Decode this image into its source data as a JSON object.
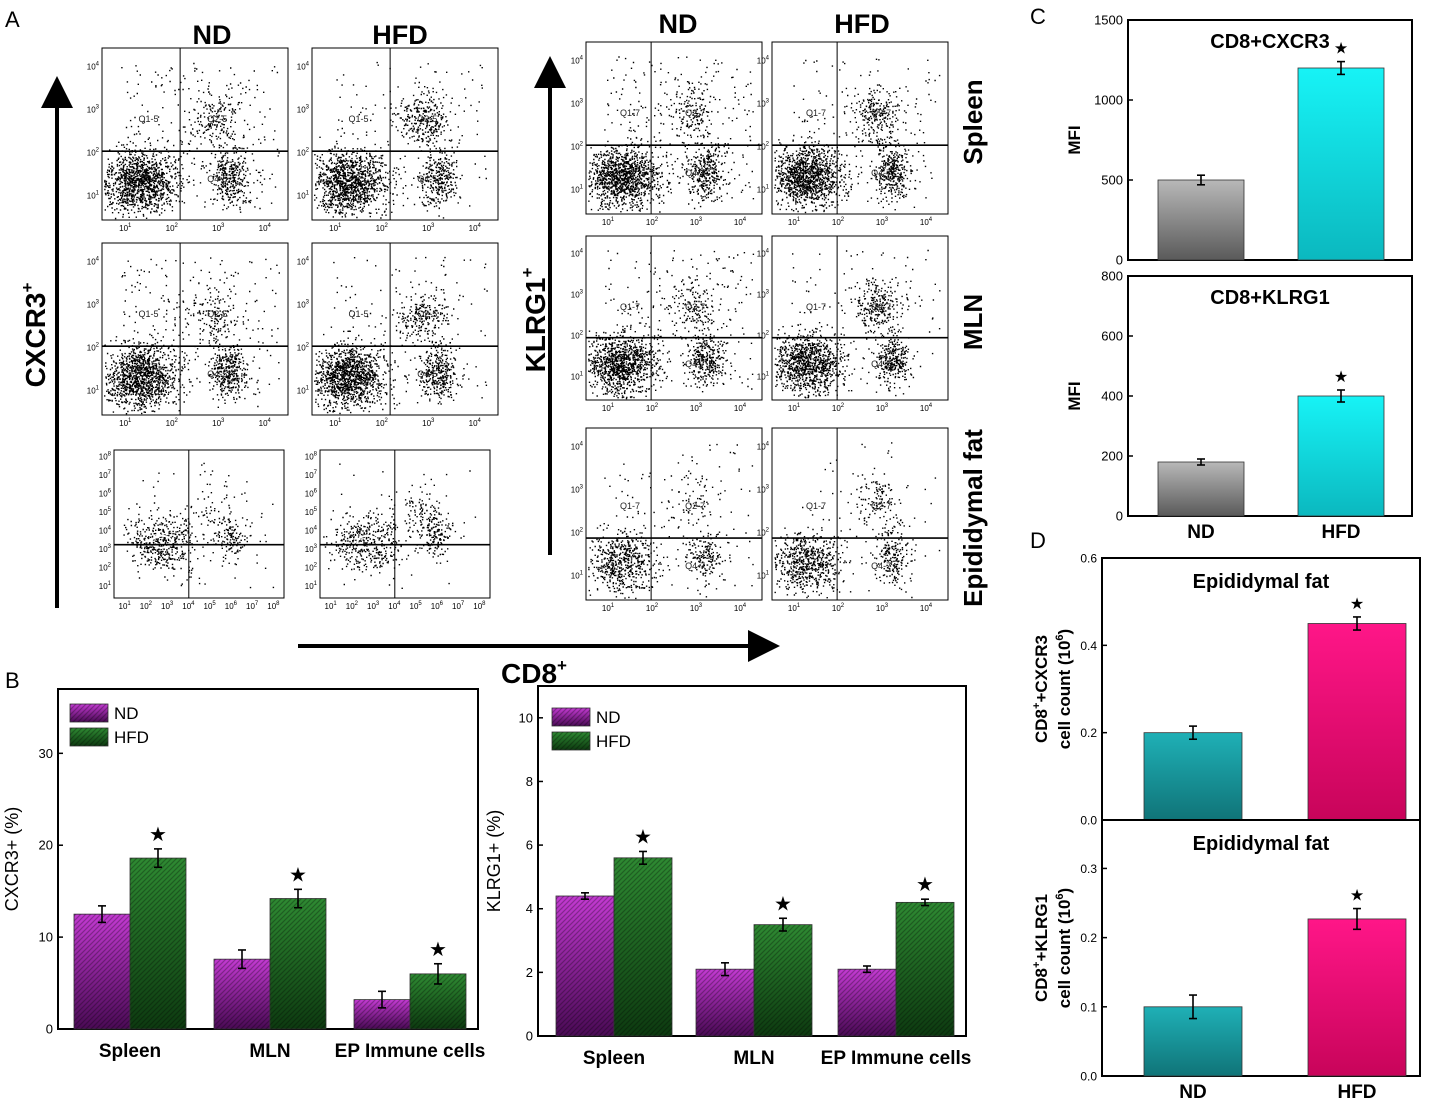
{
  "panel_labels": {
    "a": "A",
    "b": "B",
    "c": "C",
    "d": "D"
  },
  "panel_a": {
    "left_groups": [
      "ND",
      "HFD"
    ],
    "right_groups": [
      "ND",
      "HFD"
    ],
    "left_y_label": "CXCR3",
    "right_y_label": "KLRG1",
    "sup": "+",
    "x_label": "CD8",
    "row_labels": [
      "Spleen",
      "MLN",
      "Epididymal fat"
    ],
    "gate_left": [
      "Q1-5",
      "Q2-5",
      "Q4-5"
    ],
    "gate_right": [
      "Q1-7",
      "Q2-7",
      "Q4-7"
    ],
    "tick_base": "10",
    "decades_lr": [
      "1",
      "2",
      "3",
      "4"
    ],
    "decades_fat": [
      "1",
      "2",
      "3",
      "4",
      "5",
      "6",
      "7",
      "8"
    ]
  },
  "chart_data": [
    {
      "id": "b1",
      "type": "bar",
      "categories": [
        "Spleen",
        "MLN",
        "EP Immune cells"
      ],
      "series": [
        {
          "name": "ND",
          "values": [
            12.5,
            7.6,
            3.2
          ],
          "errors": [
            0.9,
            1.0,
            0.9
          ],
          "color": "#b020c0"
        },
        {
          "name": "HFD",
          "values": [
            18.6,
            14.2,
            6.0
          ],
          "errors": [
            1.0,
            1.0,
            1.1
          ],
          "color": "#1f6b23"
        }
      ],
      "ylabel": "CXCR3+ (%)",
      "ylim": [
        0,
        37
      ],
      "yticks": [
        "0",
        "10",
        "20",
        "30"
      ],
      "significance": [
        "★",
        "★",
        "★"
      ]
    },
    {
      "id": "b2",
      "type": "bar",
      "categories": [
        "Spleen",
        "MLN",
        "EP Immune cells"
      ],
      "series": [
        {
          "name": "ND",
          "values": [
            4.4,
            2.1,
            2.1
          ],
          "errors": [
            0.1,
            0.2,
            0.1
          ],
          "color": "#b020c0"
        },
        {
          "name": "HFD",
          "values": [
            5.6,
            3.5,
            4.2
          ],
          "errors": [
            0.2,
            0.2,
            0.1
          ],
          "color": "#1f6b23"
        }
      ],
      "ylabel": "KLRG1+ (%)",
      "ylim": [
        0,
        11
      ],
      "yticks": [
        "0",
        "2",
        "4",
        "6",
        "8",
        "10"
      ],
      "significance": [
        "★",
        "★",
        "★"
      ]
    },
    {
      "id": "c1",
      "type": "bar",
      "title": "CD8+CXCR3",
      "categories": [
        "ND",
        "HFD"
      ],
      "values": [
        500,
        1200
      ],
      "errors": [
        30,
        40
      ],
      "colors": [
        "#9a9a9a",
        "#10e8ec"
      ],
      "ylabel": "MFI",
      "ylim": [
        0,
        1500
      ],
      "yticks": [
        "0",
        "500",
        "1000",
        "1500"
      ],
      "significance": [
        "",
        "★"
      ]
    },
    {
      "id": "c2",
      "type": "bar",
      "title": "CD8+KLRG1",
      "categories": [
        "ND",
        "HFD"
      ],
      "values": [
        180,
        400
      ],
      "errors": [
        10,
        20
      ],
      "colors": [
        "#9a9a9a",
        "#10e8ec"
      ],
      "ylabel": "MFI",
      "ylim": [
        0,
        800
      ],
      "yticks": [
        "0",
        "200",
        "400",
        "600",
        "800"
      ],
      "significance": [
        "",
        "★"
      ]
    },
    {
      "id": "d1",
      "type": "bar",
      "title": "Epididymal fat",
      "categories": [
        "ND",
        "HFD"
      ],
      "values": [
        0.2,
        0.45
      ],
      "errors": [
        0.015,
        0.015
      ],
      "colors": [
        "#1e9aa0",
        "#f00a76"
      ],
      "ylabel": [
        "CD8",
        "+",
        "+CXCR3",
        "cell count (10",
        "6",
        ")"
      ],
      "ylim": [
        0,
        0.6
      ],
      "yticks": [
        "0.0",
        "0.2",
        "0.4",
        "0.6"
      ],
      "significance": [
        "",
        "★"
      ]
    },
    {
      "id": "d2",
      "type": "bar",
      "title": "Epididymal fat",
      "categories": [
        "ND",
        "HFD"
      ],
      "values": [
        0.1,
        0.227
      ],
      "errors": [
        0.017,
        0.015
      ],
      "colors": [
        "#1e9aa0",
        "#f00a76"
      ],
      "ylabel": [
        "CD8",
        "+",
        "+KLRG1",
        "cell count (10",
        "6",
        ")"
      ],
      "ylim": [
        0,
        0.37
      ],
      "yticks": [
        "0.0",
        "0.1",
        "0.2",
        "0.3"
      ],
      "significance": [
        "",
        "★"
      ]
    }
  ]
}
